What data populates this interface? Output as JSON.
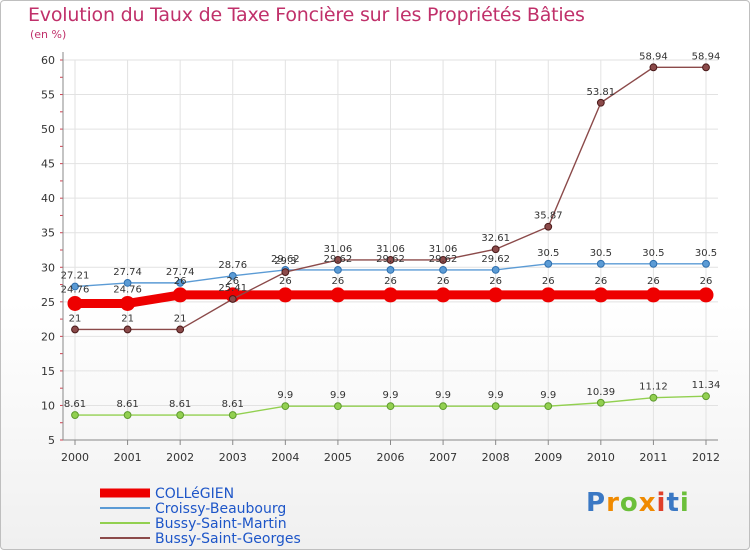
{
  "title": "Evolution du Taux de Taxe Foncière sur les Propriétés Bâties",
  "unit_label": "(en %)",
  "logo_text": "Proxiti",
  "chart_data": {
    "type": "line",
    "title": "Evolution du Taux de Taxe Foncière sur les Propriétés Bâties",
    "ylabel": "(en %)",
    "xlabel": "",
    "x": [
      "2000",
      "2001",
      "2002",
      "2003",
      "2004",
      "2005",
      "2006",
      "2007",
      "2008",
      "2009",
      "2010",
      "2011",
      "2012"
    ],
    "ylim": [
      5,
      60
    ],
    "yticks": [
      5,
      10,
      15,
      20,
      25,
      30,
      35,
      40,
      45,
      50,
      55,
      60
    ],
    "grid": true,
    "legend_position": "bottom-left",
    "series": [
      {
        "name": "COLLéGIEN",
        "color": "#ee0000",
        "values": [
          24.76,
          24.76,
          26,
          26,
          26,
          26,
          26,
          26,
          26,
          26,
          26,
          26,
          26
        ],
        "labels": [
          "24.76",
          "24.76",
          "26",
          "26",
          "26",
          "26",
          "26",
          "26",
          "26",
          "26",
          "26",
          "26",
          "26"
        ]
      },
      {
        "name": "Croissy-Beaubourg",
        "color": "#5b9bd5",
        "values": [
          27.21,
          27.74,
          27.74,
          28.76,
          29.62,
          29.62,
          29.62,
          29.62,
          29.62,
          30.5,
          30.5,
          30.5,
          30.5
        ],
        "labels": [
          "27.21",
          "27.74",
          "27.74",
          "28.76",
          "29.62",
          "29.62",
          "29.62",
          "29.62",
          "29.62",
          "30.5",
          "30.5",
          "30.5",
          "30.5"
        ]
      },
      {
        "name": "Bussy-Saint-Martin",
        "color": "#92d050",
        "values": [
          8.61,
          8.61,
          8.61,
          8.61,
          9.9,
          9.9,
          9.9,
          9.9,
          9.9,
          9.9,
          10.39,
          11.12,
          11.34
        ],
        "labels": [
          "8.61",
          "8.61",
          "8.61",
          "8.61",
          "9.9",
          "9.9",
          "9.9",
          "9.9",
          "9.9",
          "9.9",
          "10.39",
          "11.12",
          "11.34"
        ]
      },
      {
        "name": "Bussy-Saint-Georges",
        "color": "#8b4a4a",
        "values": [
          21,
          21,
          21,
          25.41,
          29.3,
          31.06,
          31.06,
          31.06,
          32.61,
          35.87,
          53.81,
          58.94,
          58.94
        ],
        "labels": [
          "21",
          "21",
          "21",
          "25.41",
          "29.3",
          "31.06",
          "31.06",
          "31.06",
          "32.61",
          "35.87",
          "53.81",
          "58.94",
          "58.94"
        ]
      }
    ]
  }
}
